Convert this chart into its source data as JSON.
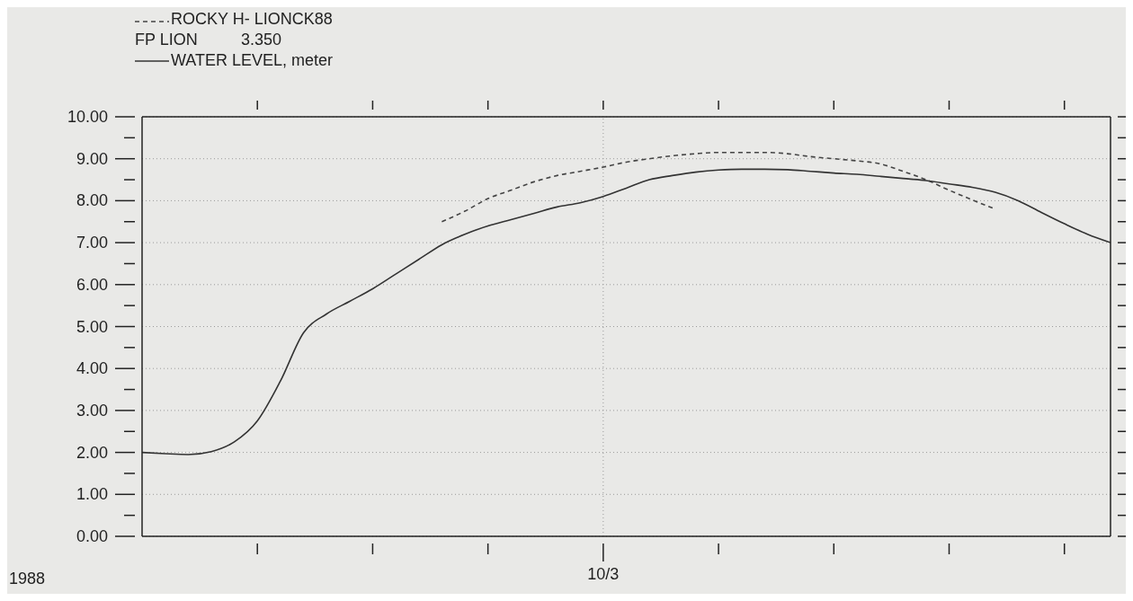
{
  "chart_data": {
    "type": "line",
    "legend": "top left",
    "grid": "y",
    "annotations": [
      "FP LION",
      "3.350",
      "1988"
    ],
    "categories": [
      null,
      null,
      null,
      null,
      null,
      null,
      null,
      null,
      null,
      null,
      null,
      null,
      null,
      null,
      null,
      null,
      null,
      null,
      null,
      null,
      "10/3",
      null,
      null,
      null,
      null,
      null,
      null,
      null,
      null,
      null,
      null,
      null,
      null,
      null,
      null,
      null,
      null,
      null,
      null,
      null,
      null,
      null,
      null
    ],
    "ylim": [
      0,
      10
    ],
    "yticks": [
      {
        "value": 0,
        "label": "0.00"
      },
      {
        "value": 0.5,
        "label": null
      },
      {
        "value": 1,
        "label": "1.00"
      },
      {
        "value": 1.5,
        "label": null
      },
      {
        "value": 2,
        "label": "2.00"
      },
      {
        "value": 2.5,
        "label": null
      },
      {
        "value": 3,
        "label": "3.00"
      },
      {
        "value": 3.5,
        "label": null
      },
      {
        "value": 4,
        "label": "4.00"
      },
      {
        "value": 4.5,
        "label": null
      },
      {
        "value": 5,
        "label": "5.00"
      },
      {
        "value": 5.5,
        "label": null
      },
      {
        "value": 6,
        "label": "6.00"
      },
      {
        "value": 6.5,
        "label": null
      },
      {
        "value": 7,
        "label": "7.00"
      },
      {
        "value": 7.5,
        "label": null
      },
      {
        "value": 8,
        "label": "8.00"
      },
      {
        "value": 8.5,
        "label": null
      },
      {
        "value": 9,
        "label": "9.00"
      },
      {
        "value": 9.5,
        "label": null
      },
      {
        "value": 10,
        "label": "10.00"
      }
    ],
    "ref_lines": [
      {
        "axis": "x",
        "value": "10/3",
        "line_style": "dotted",
        "color": "#999999"
      }
    ],
    "series": [
      {
        "name": "ROCKY H- LIONCK88",
        "color": "#444444",
        "line_style": "dashed",
        "values": [
          null,
          null,
          null,
          null,
          null,
          null,
          null,
          null,
          null,
          null,
          null,
          null,
          null,
          7.5,
          7.75,
          8.05,
          8.25,
          8.45,
          8.6,
          8.7,
          8.8,
          8.92,
          9.0,
          9.07,
          9.12,
          9.15,
          9.15,
          9.15,
          9.12,
          9.05,
          9.0,
          8.95,
          8.88,
          8.7,
          8.5,
          8.25,
          8.02,
          7.8,
          null,
          null,
          null,
          null,
          null
        ]
      },
      {
        "name": "WATER LEVEL, meter",
        "color": "#333333",
        "line_style": "solid",
        "values": [
          2.0,
          1.97,
          1.95,
          2.02,
          2.25,
          2.75,
          3.7,
          4.85,
          5.3,
          5.6,
          5.9,
          6.25,
          6.6,
          6.95,
          7.2,
          7.4,
          7.55,
          7.7,
          7.85,
          7.95,
          8.1,
          8.3,
          8.5,
          8.6,
          8.68,
          8.73,
          8.75,
          8.75,
          8.74,
          8.7,
          8.66,
          8.63,
          8.58,
          8.53,
          8.48,
          8.4,
          8.32,
          8.2,
          8.0,
          7.72,
          7.45,
          7.2,
          7.0
        ]
      }
    ]
  }
}
